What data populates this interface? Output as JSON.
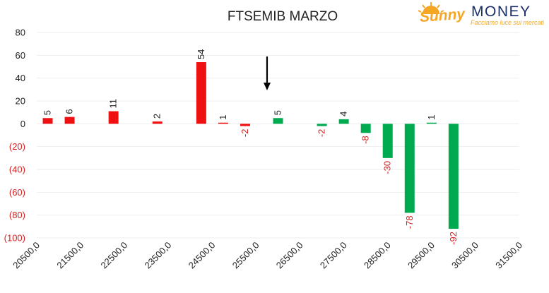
{
  "logo": {
    "brand_script": "Sunny",
    "brand_caps": "MONEY",
    "tagline": "Facciamo luce sui mercati"
  },
  "colors": {
    "positive": "#ee1111",
    "negative": "#00aa4f",
    "negative_label": "#d42020",
    "logo_orange": "#f5a623",
    "logo_blue": "#1d2f6a"
  },
  "chart_data": {
    "type": "bar",
    "title": "FTSEMIB MARZO",
    "xlabel": "",
    "ylabel": "",
    "ylim": [
      -100,
      80
    ],
    "yticks": [
      80,
      60,
      40,
      20,
      0,
      -20,
      -40,
      -60,
      -80,
      -100
    ],
    "ytick_labels": [
      "80",
      "60",
      "40",
      "20",
      "0",
      "(20)",
      "(40)",
      "(60)",
      "(80)",
      "(100)"
    ],
    "xlim": [
      20500,
      31500
    ],
    "xtick_labels": [
      "20500,0",
      "21500,0",
      "22500,0",
      "23500,0",
      "24500,0",
      "25500,0",
      "26500,0",
      "27500,0",
      "28500,0",
      "29500,0",
      "30500,0",
      "31500,0"
    ],
    "grid": true,
    "annotation": {
      "type": "arrow-down",
      "x": 25750
    },
    "bars": [
      {
        "x": 20750,
        "value": 5,
        "color": "red"
      },
      {
        "x": 21250,
        "value": 6,
        "color": "red"
      },
      {
        "x": 22250,
        "value": 11,
        "color": "red"
      },
      {
        "x": 23250,
        "value": 2,
        "color": "red"
      },
      {
        "x": 24250,
        "value": 54,
        "color": "red"
      },
      {
        "x": 24750,
        "value": 1,
        "color": "red"
      },
      {
        "x": 25250,
        "value": -2,
        "color": "red"
      },
      {
        "x": 26000,
        "value": 5,
        "color": "green"
      },
      {
        "x": 27000,
        "value": -2,
        "color": "green"
      },
      {
        "x": 27500,
        "value": 4,
        "color": "green"
      },
      {
        "x": 28000,
        "value": -8,
        "color": "green"
      },
      {
        "x": 28500,
        "value": -30,
        "color": "green"
      },
      {
        "x": 29000,
        "value": -78,
        "color": "green"
      },
      {
        "x": 29500,
        "value": 1,
        "color": "green"
      },
      {
        "x": 30000,
        "value": -92,
        "color": "green"
      }
    ]
  }
}
